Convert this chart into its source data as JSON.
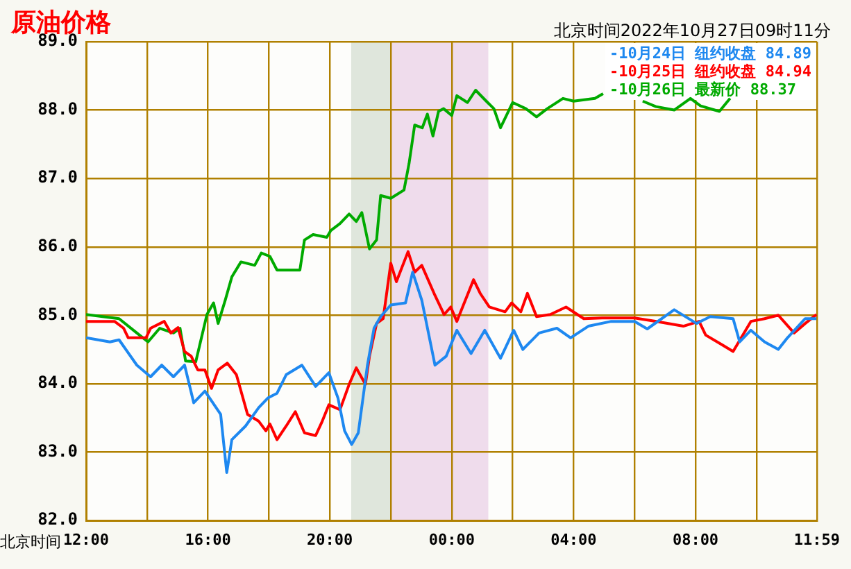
{
  "chart_data": {
    "type": "line",
    "title": "原油价格",
    "subtitle": "北京时间2022年10月27日09时11分",
    "xlabel": "北京时间",
    "xlim": [
      "2022-10-26T12:00",
      "2022-10-27T11:59"
    ],
    "xticks": [
      {
        "value": "2022-10-26T12:00",
        "label": "12:00"
      },
      {
        "value": "2022-10-26T14:00",
        "label": null
      },
      {
        "value": "2022-10-26T16:00",
        "label": "16:00"
      },
      {
        "value": "2022-10-26T18:00",
        "label": null
      },
      {
        "value": "2022-10-26T20:00",
        "label": "20:00"
      },
      {
        "value": "2022-10-26T22:00",
        "label": null
      },
      {
        "value": "2022-10-27T00:00",
        "label": "00:00"
      },
      {
        "value": "2022-10-27T02:00",
        "label": null
      },
      {
        "value": "2022-10-27T04:00",
        "label": "04:00"
      },
      {
        "value": "2022-10-27T06:00",
        "label": null
      },
      {
        "value": "2022-10-27T08:00",
        "label": "08:00"
      },
      {
        "value": "2022-10-27T10:00",
        "label": null
      },
      {
        "value": "2022-10-27T11:59",
        "label": "11:59"
      }
    ],
    "ylim": [
      82,
      89
    ],
    "yticks": [
      {
        "value": 82,
        "label": "82.0"
      },
      {
        "value": 83,
        "label": "83.0"
      },
      {
        "value": 84,
        "label": "84.0"
      },
      {
        "value": 85,
        "label": "85.0"
      },
      {
        "value": 86,
        "label": "86.0"
      },
      {
        "value": 87,
        "label": "87.0"
      },
      {
        "value": 88,
        "label": "88.0"
      },
      {
        "value": 89,
        "label": "89.0"
      }
    ],
    "grid": true,
    "legend": "top right",
    "marker": "none",
    "bands": [
      {
        "axis": "x",
        "from": "2022-10-26T20:42",
        "to": "2022-10-26T22:00",
        "label": null,
        "color": "#dfe6dc"
      },
      {
        "axis": "x",
        "from": "2022-10-26T22:00",
        "to": "2022-10-27T01:12",
        "label": null,
        "color": "#efdcec"
      }
    ],
    "series": [
      {
        "name": "-10月24日 纽约收盘 84.89",
        "color": "#1e88f0",
        "x": [
          "2022-10-26T12:00",
          "2022-10-26T12:47",
          "2022-10-26T13:05",
          "2022-10-26T13:40",
          "2022-10-26T14:07",
          "2022-10-26T14:29",
          "2022-10-26T14:52",
          "2022-10-26T15:14",
          "2022-10-26T15:32",
          "2022-10-26T15:54",
          "2022-10-26T16:25",
          "2022-10-26T16:37",
          "2022-10-26T16:47",
          "2022-10-26T17:14",
          "2022-10-26T17:40",
          "2022-10-26T17:58",
          "2022-10-26T18:16",
          "2022-10-26T18:34",
          "2022-10-26T19:05",
          "2022-10-26T19:32",
          "2022-10-26T19:58",
          "2022-10-26T20:16",
          "2022-10-26T20:29",
          "2022-10-26T20:43",
          "2022-10-26T20:56",
          "2022-10-26T21:14",
          "2022-10-26T21:27",
          "2022-10-26T21:40",
          "2022-10-26T22:00",
          "2022-10-26T22:29",
          "2022-10-26T22:43",
          "2022-10-26T23:01",
          "2022-10-26T23:27",
          "2022-10-26T23:49",
          "2022-10-27T00:10",
          "2022-10-27T00:38",
          "2022-10-27T01:05",
          "2022-10-27T01:36",
          "2022-10-27T02:02",
          "2022-10-27T02:20",
          "2022-10-27T02:52",
          "2022-10-27T03:27",
          "2022-10-27T03:54",
          "2022-10-27T04:29",
          "2022-10-27T05:14",
          "2022-10-27T06:00",
          "2022-10-27T06:25",
          "2022-10-27T07:18",
          "2022-10-27T08:02",
          "2022-10-27T08:29",
          "2022-10-27T09:14",
          "2022-10-27T09:27",
          "2022-10-27T09:49",
          "2022-10-27T10:16",
          "2022-10-27T10:43",
          "2022-10-27T11:01",
          "2022-10-27T11:36",
          "2022-10-27T11:58"
        ],
        "values": [
          84.67,
          84.61,
          84.64,
          84.27,
          84.1,
          84.27,
          84.1,
          84.27,
          83.72,
          83.89,
          83.55,
          82.7,
          83.18,
          83.38,
          83.65,
          83.79,
          83.86,
          84.13,
          84.27,
          83.96,
          84.16,
          83.79,
          83.31,
          83.11,
          83.28,
          84.27,
          84.81,
          84.98,
          85.15,
          85.18,
          85.63,
          85.22,
          84.27,
          84.4,
          84.78,
          84.44,
          84.78,
          84.37,
          84.78,
          84.5,
          84.74,
          84.81,
          84.67,
          84.84,
          84.91,
          84.91,
          84.8,
          85.08,
          84.88,
          84.98,
          84.95,
          84.61,
          84.78,
          84.61,
          84.5,
          84.67,
          84.95,
          84.95
        ]
      },
      {
        "name": "-10月25日 纽约收盘 84.94",
        "color": "#ff0000",
        "x": [
          "2022-10-26T12:00",
          "2022-10-26T12:56",
          "2022-10-26T13:14",
          "2022-10-26T13:23",
          "2022-10-26T13:58",
          "2022-10-26T14:07",
          "2022-10-26T14:34",
          "2022-10-26T14:47",
          "2022-10-26T15:01",
          "2022-10-26T15:14",
          "2022-10-26T15:27",
          "2022-10-26T15:40",
          "2022-10-26T15:54",
          "2022-10-26T16:07",
          "2022-10-26T16:20",
          "2022-10-26T16:38",
          "2022-10-26T16:56",
          "2022-10-26T17:18",
          "2022-10-26T17:40",
          "2022-10-26T17:54",
          "2022-10-26T18:02",
          "2022-10-26T18:16",
          "2022-10-26T18:34",
          "2022-10-26T18:52",
          "2022-10-26T19:10",
          "2022-10-26T19:32",
          "2022-10-26T19:45",
          "2022-10-26T19:58",
          "2022-10-26T20:20",
          "2022-10-26T20:38",
          "2022-10-26T20:52",
          "2022-10-26T21:10",
          "2022-10-26T21:18",
          "2022-10-26T21:32",
          "2022-10-26T21:45",
          "2022-10-26T22:00",
          "2022-10-26T22:11",
          "2022-10-26T22:34",
          "2022-10-26T22:47",
          "2022-10-26T23:01",
          "2022-10-26T23:27",
          "2022-10-26T23:45",
          "2022-10-26T23:58",
          "2022-10-27T00:10",
          "2022-10-27T00:43",
          "2022-10-27T00:56",
          "2022-10-27T01:14",
          "2022-10-27T01:45",
          "2022-10-27T01:58",
          "2022-10-27T02:16",
          "2022-10-27T02:29",
          "2022-10-27T02:47",
          "2022-10-27T03:14",
          "2022-10-27T03:45",
          "2022-10-27T04:20",
          "2022-10-27T04:56",
          "2022-10-27T06:00",
          "2022-10-27T06:43",
          "2022-10-27T07:36",
          "2022-10-27T08:07",
          "2022-10-27T08:20",
          "2022-10-27T08:52",
          "2022-10-27T09:14",
          "2022-10-27T09:49",
          "2022-10-27T10:16",
          "2022-10-27T10:43",
          "2022-10-27T11:14",
          "2022-10-27T11:36",
          "2022-10-27T11:58"
        ],
        "values": [
          84.91,
          84.91,
          84.81,
          84.67,
          84.67,
          84.81,
          84.91,
          84.74,
          84.82,
          84.47,
          84.4,
          84.2,
          84.2,
          83.93,
          84.2,
          84.3,
          84.13,
          83.55,
          83.45,
          83.31,
          83.41,
          83.18,
          83.38,
          83.59,
          83.28,
          83.24,
          83.45,
          83.69,
          83.62,
          83.99,
          84.23,
          83.99,
          84.4,
          84.88,
          84.95,
          85.76,
          85.49,
          85.93,
          85.63,
          85.73,
          85.29,
          85.01,
          85.12,
          84.91,
          85.52,
          85.32,
          85.12,
          85.05,
          85.18,
          85.05,
          85.32,
          84.98,
          85.01,
          85.12,
          84.95,
          84.96,
          84.96,
          84.91,
          84.84,
          84.91,
          84.71,
          84.57,
          84.47,
          84.91,
          84.95,
          85.0,
          84.74,
          84.88,
          85.01
        ]
      },
      {
        "name": "-10月26日 最新价 88.37",
        "color": "#00aa00",
        "x": [
          "2022-10-26T12:00",
          "2022-10-26T13:05",
          "2022-10-26T13:40",
          "2022-10-26T14:02",
          "2022-10-26T14:25",
          "2022-10-26T14:52",
          "2022-10-26T15:05",
          "2022-10-26T15:16",
          "2022-10-26T15:36",
          "2022-10-26T15:58",
          "2022-10-26T16:11",
          "2022-10-26T16:20",
          "2022-10-26T16:34",
          "2022-10-26T16:47",
          "2022-10-26T17:05",
          "2022-10-26T17:32",
          "2022-10-26T17:45",
          "2022-10-26T18:02",
          "2022-10-26T18:16",
          "2022-10-26T19:01",
          "2022-10-26T19:10",
          "2022-10-26T19:27",
          "2022-10-26T19:54",
          "2022-10-26T20:02",
          "2022-10-26T20:20",
          "2022-10-26T20:38",
          "2022-10-26T20:52",
          "2022-10-26T21:03",
          "2022-10-26T21:18",
          "2022-10-26T21:32",
          "2022-10-26T21:40",
          "2022-10-26T22:00",
          "2022-10-26T22:26",
          "2022-10-26T22:36",
          "2022-10-26T22:47",
          "2022-10-26T23:02",
          "2022-10-26T23:12",
          "2022-10-26T23:23",
          "2022-10-26T23:34",
          "2022-10-26T23:44",
          "2022-10-27T00:00",
          "2022-10-27T00:10",
          "2022-10-27T00:31",
          "2022-10-27T00:47",
          "2022-10-27T01:08",
          "2022-10-27T01:23",
          "2022-10-27T01:36",
          "2022-10-27T02:00",
          "2022-10-27T02:26",
          "2022-10-27T02:47",
          "2022-10-27T03:08",
          "2022-10-27T03:39",
          "2022-10-27T04:00",
          "2022-10-27T04:42",
          "2022-10-27T04:58",
          "2022-10-27T05:30",
          "2022-10-27T06:16",
          "2022-10-27T06:42",
          "2022-10-27T07:18",
          "2022-10-27T07:50",
          "2022-10-27T08:10",
          "2022-10-27T08:47",
          "2022-10-27T09:08"
        ],
        "values": [
          85.01,
          84.95,
          84.74,
          84.61,
          84.81,
          84.74,
          84.81,
          84.33,
          84.32,
          85.01,
          85.18,
          84.88,
          85.22,
          85.56,
          85.78,
          85.73,
          85.91,
          85.86,
          85.66,
          85.66,
          86.1,
          86.18,
          86.14,
          86.24,
          86.34,
          86.48,
          86.37,
          86.5,
          85.97,
          86.1,
          86.75,
          86.71,
          86.83,
          87.22,
          87.78,
          87.74,
          87.94,
          87.62,
          87.98,
          88.02,
          87.92,
          88.21,
          88.11,
          88.29,
          88.13,
          88.02,
          87.74,
          88.11,
          88.02,
          87.9,
          88.02,
          88.17,
          88.13,
          88.17,
          88.24,
          null,
          88.13,
          88.05,
          88.0,
          88.17,
          88.06,
          87.98,
          88.17
        ]
      }
    ]
  }
}
